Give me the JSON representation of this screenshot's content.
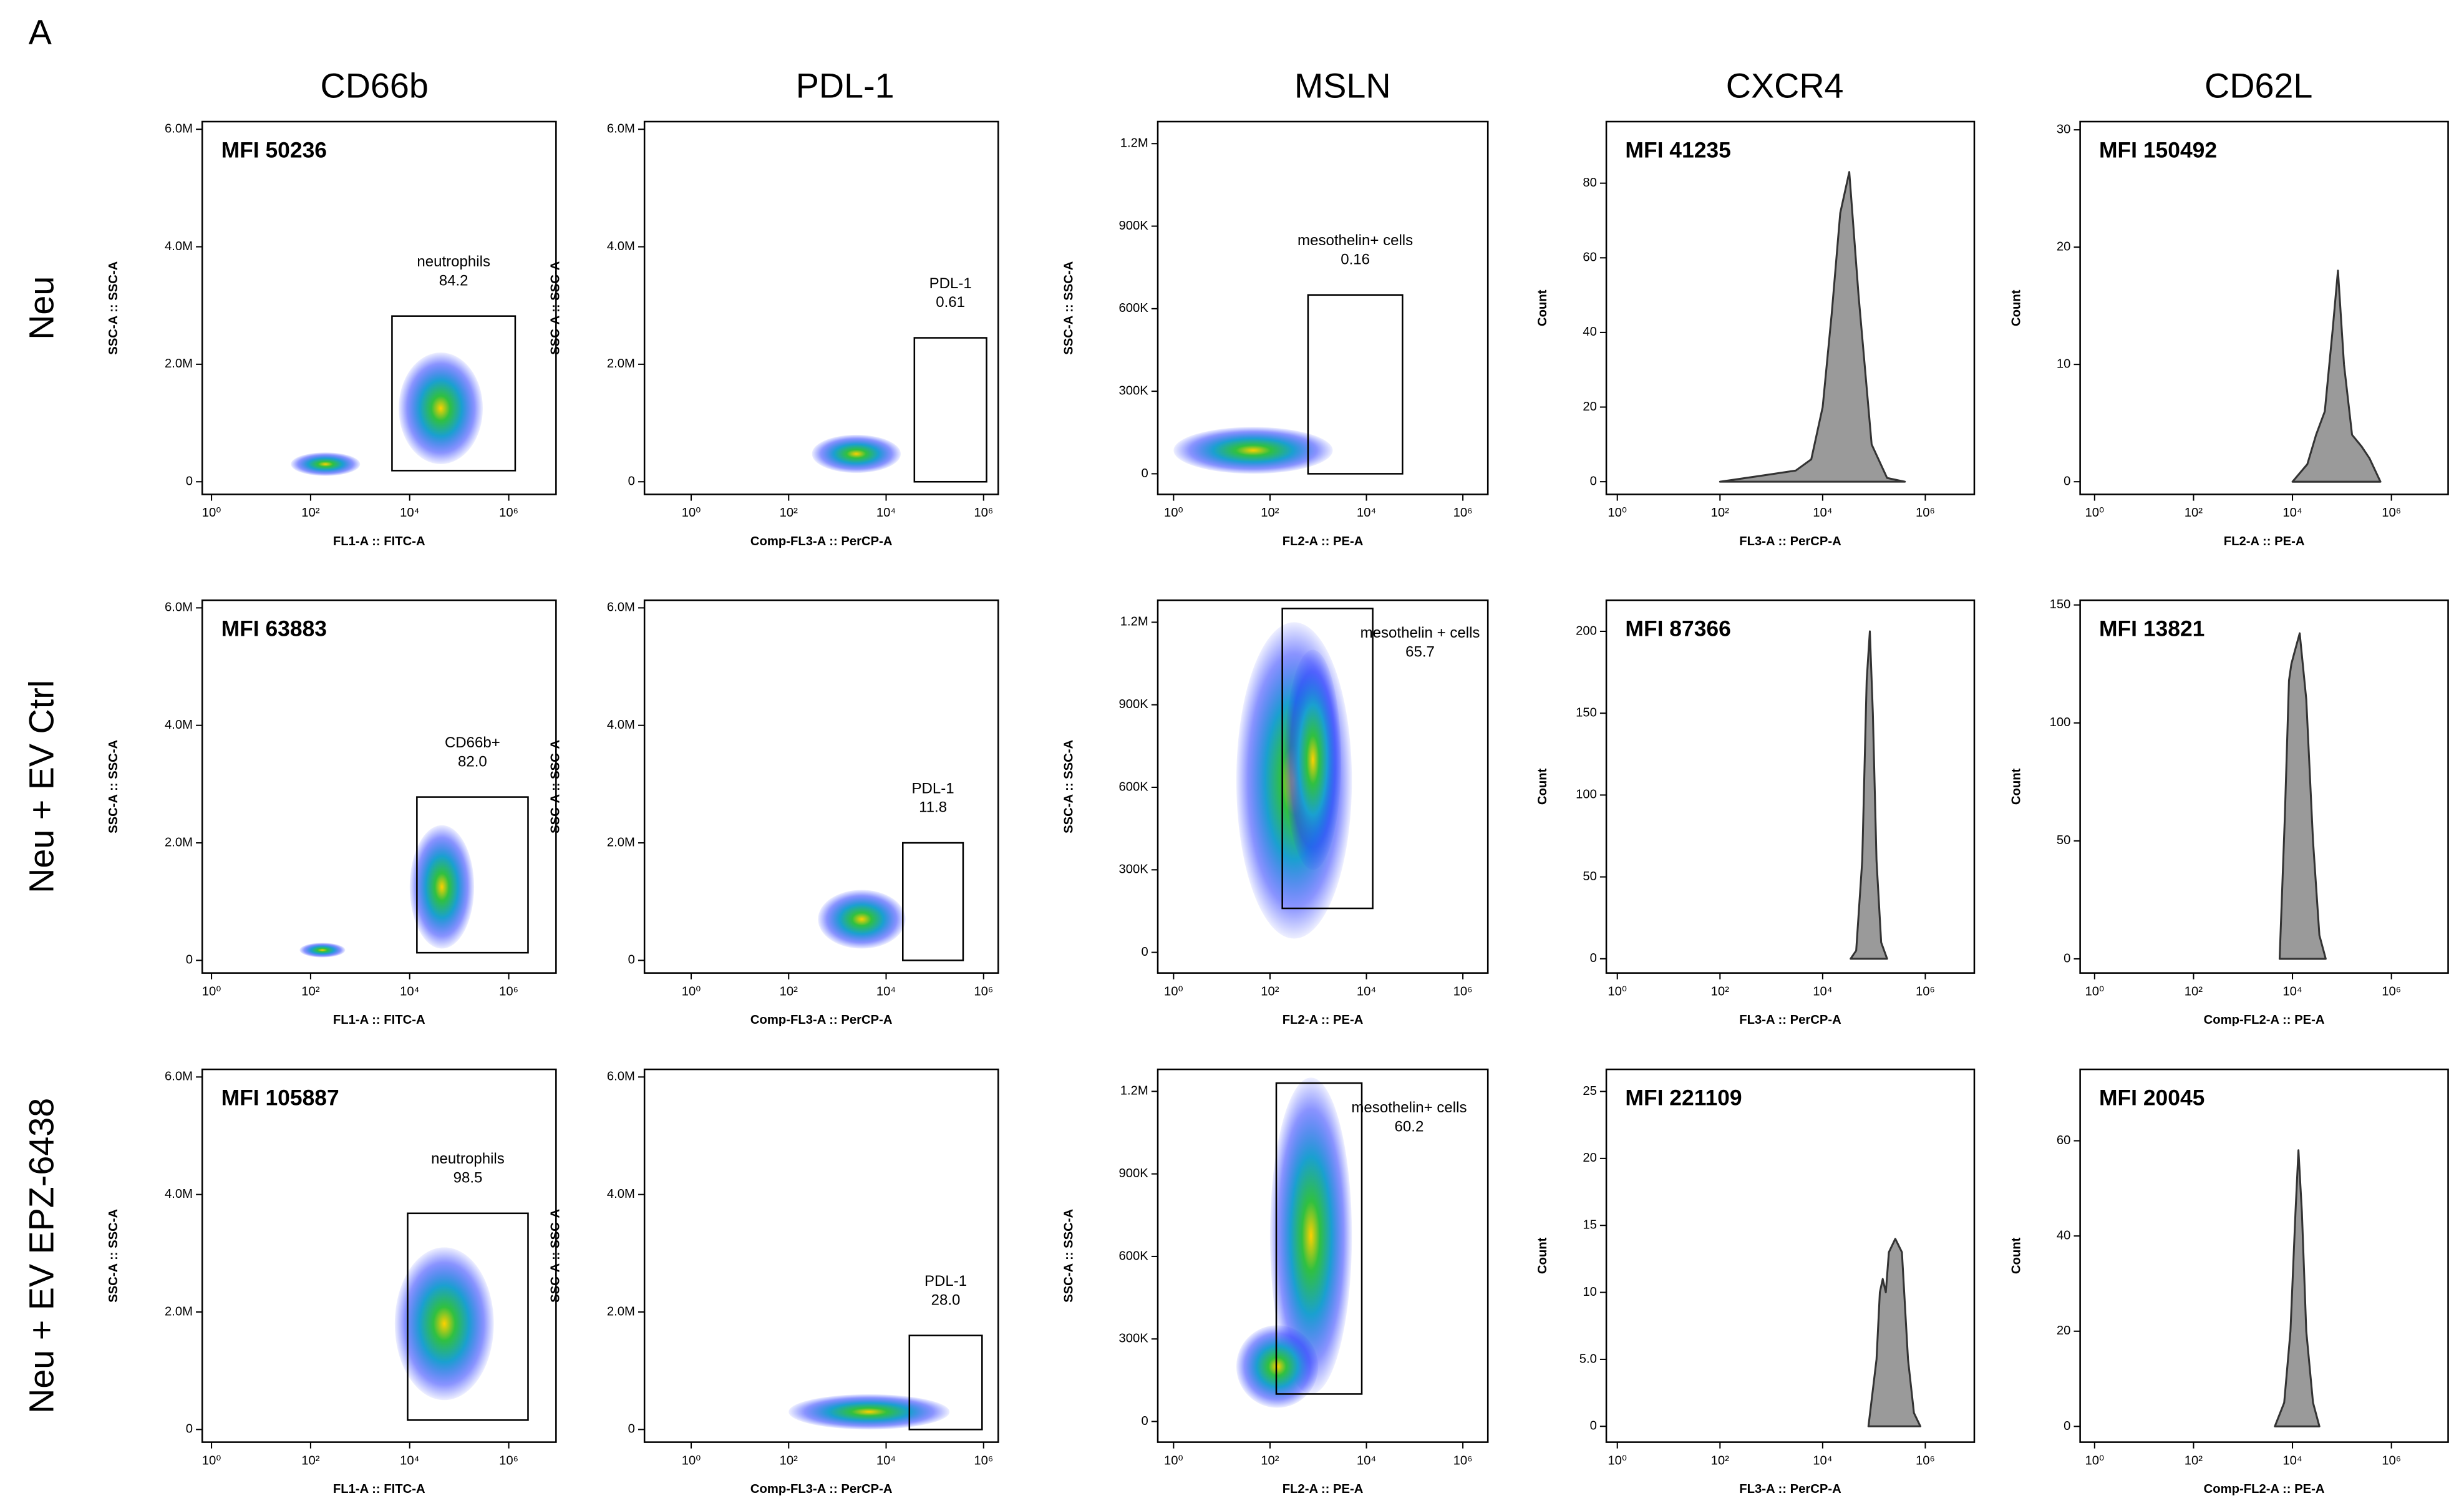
{
  "panel_label": "A",
  "column_titles": [
    "CD66b",
    "PDL-1",
    "MSLN",
    "CXCR4",
    "CD62L"
  ],
  "row_titles": [
    "Neu",
    "Neu + EV Ctrl",
    "Neu + EV EPZ-6438"
  ],
  "chart_data": [
    {
      "type": "density",
      "mfi": "MFI 50236",
      "xlabel": "FL1-A :: FITC-A",
      "ylabel": "SSC-A :: SSC-A",
      "xscale": "log",
      "xlim": [
        0.65,
        9000000
      ],
      "ylim": [
        -215000,
        6130000
      ],
      "xticks": [
        {
          "value": 1,
          "label": "10⁰"
        },
        {
          "value": 100,
          "label": "10²"
        },
        {
          "value": 10000,
          "label": "10⁴"
        },
        {
          "value": 1000000,
          "label": "10⁶"
        }
      ],
      "yticks": [
        0,
        {
          "value": 2000000,
          "label": "2.0M"
        },
        {
          "value": 4000000,
          "label": "4.0M"
        },
        {
          "value": 6000000,
          "label": "6.0M"
        }
      ],
      "clusters": [
        {
          "x": [
            6000,
            300000
          ],
          "y": [
            300000,
            2200000
          ]
        },
        {
          "x": [
            40,
            1000
          ],
          "y": [
            100000,
            500000
          ]
        }
      ],
      "gate": {
        "name": "neutrophils",
        "percent": 84.2,
        "x": [
          4400,
          1350000
        ],
        "y": [
          190000,
          2820000
        ]
      }
    },
    {
      "type": "density",
      "mfi": "",
      "xlabel": "Comp-FL3-A :: PerCP-A",
      "ylabel": "SSC-A :: SSC-A",
      "xscale": "log",
      "xlim": [
        0.11,
        2000000
      ],
      "ylim": [
        -215000,
        6130000
      ],
      "xticks": [
        {
          "value": 1,
          "label": "10⁰"
        },
        {
          "value": 100,
          "label": "10²"
        },
        {
          "value": 10000,
          "label": "10⁴"
        },
        {
          "value": 1000000,
          "label": "10⁶"
        }
      ],
      "yticks": [
        0,
        {
          "value": 2000000,
          "label": "2.0M"
        },
        {
          "value": 4000000,
          "label": "4.0M"
        },
        {
          "value": 6000000,
          "label": "6.0M"
        }
      ],
      "clusters": [
        {
          "x": [
            300,
            20000
          ],
          "y": [
            150000,
            800000
          ]
        }
      ],
      "gate": {
        "name": "PDL-1",
        "percent": 0.61,
        "x": [
          38000,
          1150000
        ],
        "y": [
          0,
          2450000
        ]
      }
    },
    {
      "type": "density",
      "mfi": "",
      "xlabel": "FL2-A :: PE-A",
      "ylabel": "SSC-A :: SSC-A",
      "xscale": "log",
      "xlim": [
        0.47,
        3300000
      ],
      "ylim": [
        -75000,
        1280000
      ],
      "xticks": [
        {
          "value": 1,
          "label": "10⁰"
        },
        {
          "value": 100,
          "label": "10²"
        },
        {
          "value": 10000,
          "label": "10⁴"
        },
        {
          "value": 1000000,
          "label": "10⁶"
        }
      ],
      "yticks": [
        0,
        {
          "value": 300000,
          "label": "300K"
        },
        {
          "value": 600000,
          "label": "600K"
        },
        {
          "value": 900000,
          "label": "900K"
        },
        {
          "value": 1200000,
          "label": "1.2M"
        }
      ],
      "clusters": [
        {
          "x": [
            1,
            2000
          ],
          "y": [
            0,
            170000
          ]
        }
      ],
      "gate": {
        "name": "mesothelin+ cells",
        "percent": 0.16,
        "x": [
          615,
          56000
        ],
        "y": [
          0,
          650000
        ]
      }
    },
    {
      "type": "area",
      "mfi": "MFI 41235",
      "xlabel": "FL3-A :: PerCP-A",
      "ylabel": "Count",
      "xscale": "log",
      "xlim": [
        0.61,
        9000000
      ],
      "ylim": [
        -3.4,
        96.5
      ],
      "xticks": [
        {
          "value": 1,
          "label": "10⁰"
        },
        {
          "value": 100,
          "label": "10²"
        },
        {
          "value": 10000,
          "label": "10⁴"
        },
        {
          "value": 1000000,
          "label": "10⁶"
        }
      ],
      "yticks": [
        0,
        20,
        40,
        60,
        80
      ],
      "x": [
        100,
        1000,
        3000,
        6000,
        10000,
        15000,
        22000,
        33000,
        50000,
        90000,
        180000,
        400000
      ],
      "values": [
        0,
        2,
        3,
        6,
        20,
        45,
        72,
        83,
        50,
        10,
        1,
        0
      ]
    },
    {
      "type": "area",
      "mfi": "MFI 150492",
      "xlabel": "FL2-A :: PE-A",
      "ylabel": "Count",
      "xscale": "log",
      "xlim": [
        0.51,
        14000000
      ],
      "ylim": [
        -1.08,
        30.7
      ],
      "xticks": [
        {
          "value": 1,
          "label": "10⁰"
        },
        {
          "value": 100,
          "label": "10²"
        },
        {
          "value": 10000,
          "label": "10⁴"
        },
        {
          "value": 1000000,
          "label": "10⁶"
        }
      ],
      "yticks": [
        0,
        10,
        20,
        30
      ],
      "x": [
        10000,
        20000,
        30000,
        45000,
        65000,
        83000,
        110000,
        160000,
        250000,
        360000,
        600000
      ],
      "values": [
        0,
        1.5,
        4,
        6,
        13,
        18,
        10,
        4,
        3,
        2,
        0
      ]
    },
    {
      "type": "density",
      "mfi": "MFI 63883",
      "xlabel": "FL1-A :: FITC-A",
      "ylabel": "SSC-A :: SSC-A",
      "xscale": "log",
      "xlim": [
        0.65,
        9000000
      ],
      "ylim": [
        -215000,
        6130000
      ],
      "xticks": [
        {
          "value": 1,
          "label": "10⁰"
        },
        {
          "value": 100,
          "label": "10²"
        },
        {
          "value": 10000,
          "label": "10⁴"
        },
        {
          "value": 1000000,
          "label": "10⁶"
        }
      ],
      "yticks": [
        0,
        {
          "value": 2000000,
          "label": "2.0M"
        },
        {
          "value": 4000000,
          "label": "4.0M"
        },
        {
          "value": 6000000,
          "label": "6.0M"
        }
      ],
      "clusters": [
        {
          "x": [
            10000,
            200000
          ],
          "y": [
            200000,
            2300000
          ]
        },
        {
          "x": [
            60,
            500
          ],
          "y": [
            50000,
            300000
          ]
        }
      ],
      "gate": {
        "name": "CD66b+",
        "percent": 82,
        "percent_label": "82.0",
        "x": [
          14000,
          2450000
        ],
        "y": [
          130000,
          2780000
        ]
      }
    },
    {
      "type": "density",
      "mfi": "",
      "xlabel": "Comp-FL3-A :: PerCP-A",
      "ylabel": "SSC-A :: SSC-A",
      "xscale": "log",
      "xlim": [
        0.11,
        2000000
      ],
      "ylim": [
        -215000,
        6130000
      ],
      "xticks": [
        {
          "value": 1,
          "label": "10⁰"
        },
        {
          "value": 100,
          "label": "10²"
        },
        {
          "value": 10000,
          "label": "10⁴"
        },
        {
          "value": 1000000,
          "label": "10⁶"
        }
      ],
      "yticks": [
        0,
        {
          "value": 2000000,
          "label": "2.0M"
        },
        {
          "value": 4000000,
          "label": "4.0M"
        },
        {
          "value": 6000000,
          "label": "6.0M"
        }
      ],
      "clusters": [
        {
          "x": [
            400,
            25000
          ],
          "y": [
            200000,
            1200000
          ]
        }
      ],
      "gate": {
        "name": "PDL-1",
        "percent": 11.8,
        "x": [
          22000,
          380000
        ],
        "y": [
          0,
          2000000
        ]
      }
    },
    {
      "type": "density",
      "mfi": "",
      "xlabel": "FL2-A :: PE-A",
      "ylabel": "SSC-A :: SSC-A",
      "xscale": "log",
      "xlim": [
        0.47,
        3300000
      ],
      "ylim": [
        -75000,
        1280000
      ],
      "xticks": [
        {
          "value": 1,
          "label": "10⁰"
        },
        {
          "value": 100,
          "label": "10²"
        },
        {
          "value": 10000,
          "label": "10⁴"
        },
        {
          "value": 1000000,
          "label": "10⁶"
        }
      ],
      "yticks": [
        0,
        {
          "value": 300000,
          "label": "300K"
        },
        {
          "value": 600000,
          "label": "600K"
        },
        {
          "value": 900000,
          "label": "900K"
        },
        {
          "value": 1200000,
          "label": "1.2M"
        }
      ],
      "clusters": [
        {
          "x": [
            20,
            5000
          ],
          "y": [
            50000,
            1200000
          ]
        },
        {
          "x": [
            200,
            3000
          ],
          "y": [
            300000,
            1100000
          ]
        }
      ],
      "gate": {
        "name": "mesothelin + cells",
        "percent": 65.7,
        "x": [
          180,
          13500
        ],
        "y": [
          160000,
          1250000
        ]
      }
    },
    {
      "type": "area",
      "mfi": "MFI 87366",
      "xlabel": "FL3-A :: PerCP-A",
      "ylabel": "Count",
      "xscale": "log",
      "xlim": [
        0.61,
        9000000
      ],
      "ylim": [
        -8.7,
        219
      ],
      "xticks": [
        {
          "value": 1,
          "label": "10⁰"
        },
        {
          "value": 100,
          "label": "10²"
        },
        {
          "value": 10000,
          "label": "10⁴"
        },
        {
          "value": 1000000,
          "label": "10⁶"
        }
      ],
      "yticks": [
        0,
        50,
        100,
        150,
        200
      ],
      "x": [
        35000,
        45000,
        59000,
        72000,
        83000,
        95000,
        112000,
        138000,
        180000
      ],
      "values": [
        0,
        5,
        60,
        170,
        200,
        150,
        60,
        10,
        0
      ]
    },
    {
      "type": "area",
      "mfi": "MFI 13821",
      "xlabel": "Comp-FL2-A :: PE-A",
      "ylabel": "Count",
      "xscale": "log",
      "xlim": [
        0.51,
        14000000
      ],
      "ylim": [
        -6,
        152
      ],
      "xticks": [
        {
          "value": 1,
          "label": "10⁰"
        },
        {
          "value": 100,
          "label": "10²"
        },
        {
          "value": 10000,
          "label": "10⁴"
        },
        {
          "value": 1000000,
          "label": "10⁶"
        }
      ],
      "yticks": [
        0,
        50,
        100,
        150
      ],
      "x": [
        5500,
        7000,
        8500,
        9500,
        11000,
        14000,
        19000,
        26000,
        35000,
        47000
      ],
      "values": [
        0,
        60,
        118,
        125,
        130,
        138,
        110,
        50,
        10,
        0
      ]
    },
    {
      "type": "density",
      "mfi": "MFI 105887",
      "xlabel": "FL1-A :: FITC-A",
      "ylabel": "SSC-A :: SSC-A",
      "xscale": "log",
      "xlim": [
        0.65,
        9000000
      ],
      "ylim": [
        -215000,
        6130000
      ],
      "xticks": [
        {
          "value": 1,
          "label": "10⁰"
        },
        {
          "value": 100,
          "label": "10²"
        },
        {
          "value": 10000,
          "label": "10⁴"
        },
        {
          "value": 1000000,
          "label": "10⁶"
        }
      ],
      "yticks": [
        0,
        {
          "value": 2000000,
          "label": "2.0M"
        },
        {
          "value": 4000000,
          "label": "4.0M"
        },
        {
          "value": 6000000,
          "label": "6.0M"
        }
      ],
      "clusters": [
        {
          "x": [
            5000,
            500000
          ],
          "y": [
            500000,
            3100000
          ]
        }
      ],
      "gate": {
        "name": "neutrophils",
        "percent": 98.5,
        "x": [
          9100,
          2450000
        ],
        "y": [
          160000,
          3680000
        ]
      }
    },
    {
      "type": "density",
      "mfi": "",
      "xlabel": "Comp-FL3-A :: PerCP-A",
      "ylabel": "SSC-A :: SSC-A",
      "xscale": "log",
      "xlim": [
        0.11,
        2000000
      ],
      "ylim": [
        -215000,
        6130000
      ],
      "xticks": [
        {
          "value": 1,
          "label": "10⁰"
        },
        {
          "value": 100,
          "label": "10²"
        },
        {
          "value": 10000,
          "label": "10⁴"
        },
        {
          "value": 1000000,
          "label": "10⁶"
        }
      ],
      "yticks": [
        0,
        {
          "value": 2000000,
          "label": "2.0M"
        },
        {
          "value": 4000000,
          "label": "4.0M"
        },
        {
          "value": 6000000,
          "label": "6.0M"
        }
      ],
      "clusters": [
        {
          "x": [
            100,
            200000
          ],
          "y": [
            0,
            600000
          ]
        }
      ],
      "gate": {
        "name": "PDL-1",
        "percent": 28,
        "percent_label": "28.0",
        "x": [
          30000,
          930000
        ],
        "y": [
          0,
          1600000
        ]
      }
    },
    {
      "type": "density",
      "mfi": "",
      "xlabel": "FL2-A :: PE-A",
      "ylabel": "SSC-A :: SSC-A",
      "xscale": "log",
      "xlim": [
        0.47,
        3300000
      ],
      "ylim": [
        -75000,
        1280000
      ],
      "xticks": [
        {
          "value": 1,
          "label": "10⁰"
        },
        {
          "value": 100,
          "label": "10²"
        },
        {
          "value": 10000,
          "label": "10⁴"
        },
        {
          "value": 1000000,
          "label": "10⁶"
        }
      ],
      "yticks": [
        0,
        {
          "value": 300000,
          "label": "300K"
        },
        {
          "value": 600000,
          "label": "600K"
        },
        {
          "value": 900000,
          "label": "900K"
        },
        {
          "value": 1200000,
          "label": "1.2M"
        }
      ],
      "clusters": [
        {
          "x": [
            100,
            5000
          ],
          "y": [
            100000,
            1250000
          ]
        },
        {
          "x": [
            20,
            1000
          ],
          "y": [
            50000,
            350000
          ]
        }
      ],
      "gate": {
        "name": "mesothelin+ cells",
        "percent": 60.2,
        "x": [
          135,
          8000
        ],
        "y": [
          100000,
          1230000
        ]
      }
    },
    {
      "type": "area",
      "mfi": "MFI 221109",
      "xlabel": "FL3-A :: PerCP-A",
      "ylabel": "Count",
      "xscale": "log",
      "xlim": [
        0.61,
        9000000
      ],
      "ylim": [
        -1.18,
        26.65
      ],
      "xticks": [
        {
          "value": 1,
          "label": "10⁰"
        },
        {
          "value": 100,
          "label": "10²"
        },
        {
          "value": 10000,
          "label": "10⁴"
        },
        {
          "value": 1000000,
          "label": "10⁶"
        }
      ],
      "yticks": [
        0,
        {
          "value": 5,
          "label": "5.0"
        },
        10,
        15,
        20,
        25
      ],
      "x": [
        78000,
        112000,
        130000,
        148000,
        170000,
        195000,
        260000,
        350000,
        460000,
        600000,
        800000
      ],
      "values": [
        0,
        5,
        10,
        11,
        10,
        13,
        14,
        13,
        5,
        1,
        0
      ]
    },
    {
      "type": "area",
      "mfi": "MFI 20045",
      "xlabel": "Comp-FL2-A :: PE-A",
      "ylabel": "Count",
      "xscale": "log",
      "xlim": [
        0.51,
        14000000
      ],
      "ylim": [
        -3.3,
        75
      ],
      "xticks": [
        {
          "value": 1,
          "label": "10⁰"
        },
        {
          "value": 100,
          "label": "10²"
        },
        {
          "value": 10000,
          "label": "10⁴"
        },
        {
          "value": 1000000,
          "label": "10⁶"
        }
      ],
      "yticks": [
        0,
        20,
        40,
        60
      ],
      "x": [
        4400,
        6800,
        9100,
        11500,
        13200,
        15500,
        19000,
        26000,
        35000
      ],
      "values": [
        0,
        5,
        20,
        45,
        58,
        45,
        20,
        5,
        0
      ]
    }
  ]
}
